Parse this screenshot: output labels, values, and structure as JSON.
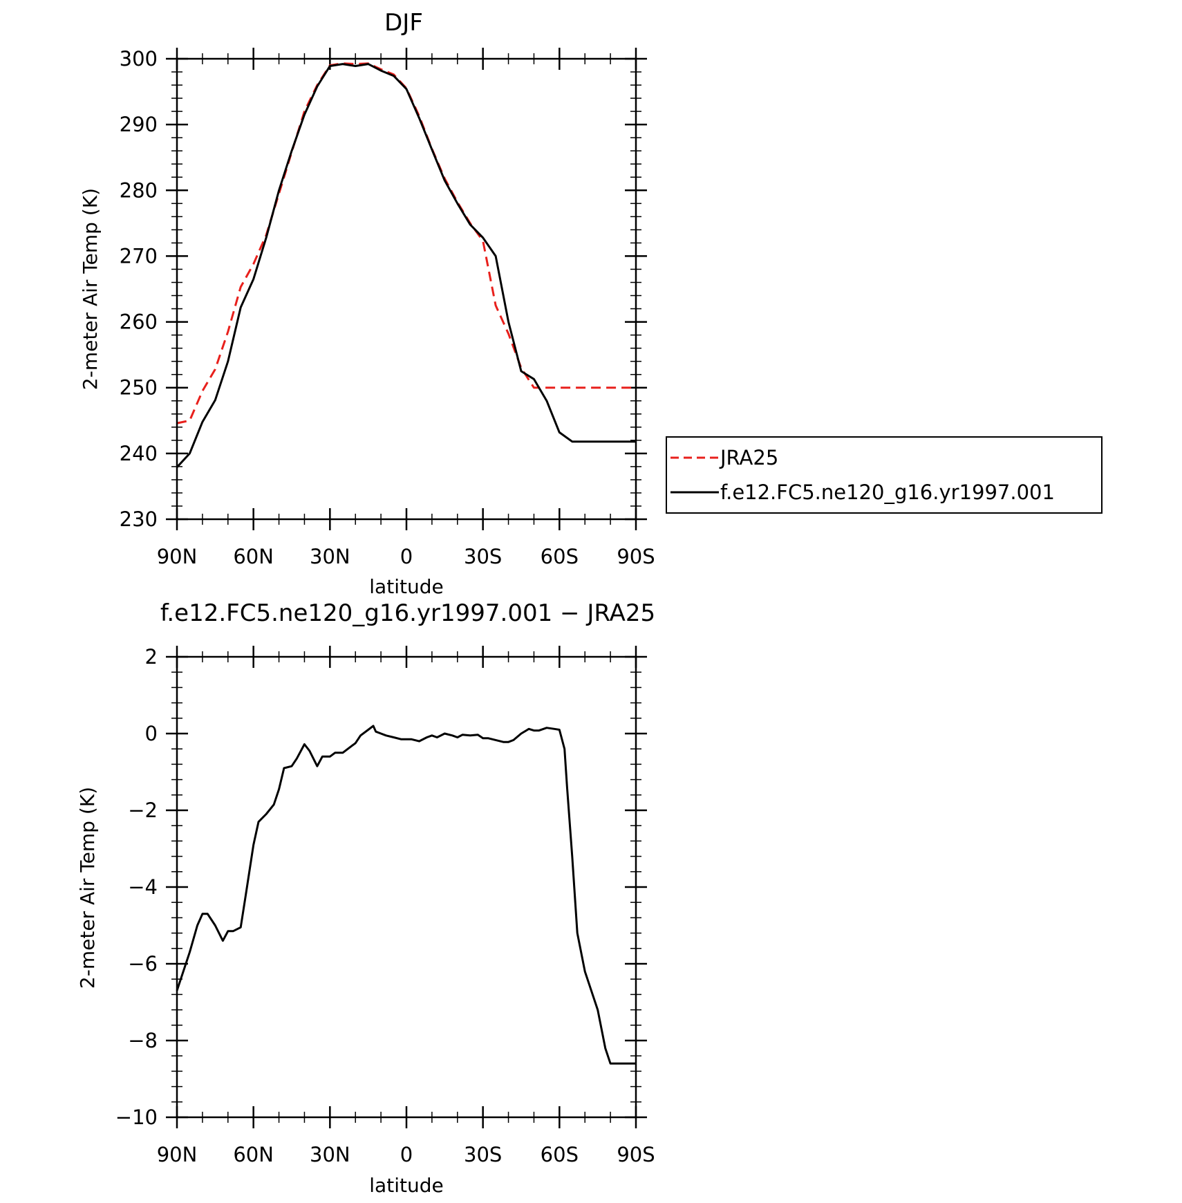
{
  "chart_data": [
    {
      "type": "line",
      "title": "DJF",
      "xlabel": "latitude",
      "ylabel": "2-meter Air Temp (K)",
      "xlim": [
        90,
        -90
      ],
      "ylim": [
        230,
        300
      ],
      "x_ticks": [
        90,
        60,
        30,
        0,
        -30,
        -60,
        -90
      ],
      "x_tick_labels": [
        "90N",
        "60N",
        "30N",
        "0",
        "30S",
        "60S",
        "90S"
      ],
      "y_ticks": [
        230,
        240,
        250,
        260,
        270,
        280,
        290,
        300
      ],
      "y_tick_labels": [
        "230",
        "240",
        "250",
        "260",
        "270",
        "280",
        "290",
        "300"
      ],
      "grid": false,
      "legend_placement": "outside-right",
      "series": [
        {
          "name": "JRA25",
          "color": "#e8201c",
          "style": "dashed",
          "x": [
            90,
            85,
            80,
            75,
            70,
            65,
            60,
            55,
            50,
            45,
            40,
            35,
            30,
            25,
            20,
            15,
            10,
            5,
            0,
            -5,
            -10,
            -15,
            -20,
            -25,
            -30,
            -35,
            -40,
            -45,
            -50,
            -55,
            -60,
            -65,
            -70,
            -75,
            -80,
            -85,
            -90
          ],
          "values": [
            244.6,
            245.0,
            249.5,
            252.8,
            258.5,
            265.3,
            268.8,
            273.2,
            279.5,
            285.8,
            292.0,
            296.0,
            299.0,
            299.3,
            299.2,
            299.3,
            298.4,
            297.6,
            295.5,
            291.3,
            286.3,
            281.8,
            278.2,
            275.0,
            272.3,
            262.5,
            258.2,
            253.0,
            250.0,
            250.0,
            250.0,
            250.0,
            250.0,
            250.0,
            250.0,
            250.0,
            250.0
          ]
        },
        {
          "name": "f.e12.FC5.ne120_g16.yr1997.001",
          "color": "#000000",
          "style": "solid",
          "x": [
            90,
            85,
            80,
            75,
            70,
            65,
            60,
            55,
            50,
            45,
            40,
            35,
            30,
            25,
            20,
            15,
            10,
            5,
            0,
            -5,
            -10,
            -15,
            -20,
            -25,
            -30,
            -35,
            -40,
            -45,
            -50,
            -55,
            -60,
            -65,
            -70,
            -75,
            -80,
            -85,
            -90
          ],
          "values": [
            237.9,
            240.0,
            244.8,
            248.1,
            254.0,
            262.2,
            266.5,
            272.8,
            280.0,
            286.0,
            291.5,
            295.8,
            298.9,
            299.2,
            298.9,
            299.2,
            298.2,
            297.4,
            295.4,
            291.0,
            286.2,
            281.5,
            278.0,
            274.8,
            272.8,
            270.0,
            260.0,
            252.5,
            251.3,
            248.0,
            243.2,
            241.8,
            241.8,
            241.8,
            241.8,
            241.8,
            241.8
          ]
        }
      ]
    },
    {
      "type": "line",
      "title": "f.e12.FC5.ne120_g16.yr1997.001 − JRA25",
      "xlabel": "latitude",
      "ylabel": "2-meter Air Temp (K)",
      "xlim": [
        90,
        -90
      ],
      "ylim": [
        -10,
        2
      ],
      "x_ticks": [
        90,
        60,
        30,
        0,
        -30,
        -60,
        -90
      ],
      "x_tick_labels": [
        "90N",
        "60N",
        "30N",
        "0",
        "30S",
        "60S",
        "90S"
      ],
      "y_ticks": [
        2,
        0,
        -2,
        -4,
        -6,
        -8,
        -10
      ],
      "y_tick_labels": [
        "2",
        "0",
        "−2",
        "−4",
        "−6",
        "−8",
        "−10"
      ],
      "grid": false,
      "series": [
        {
          "color": "#000000",
          "style": "solid",
          "x": [
            90,
            85,
            82,
            80,
            78,
            75,
            72,
            70,
            68,
            65,
            63,
            60,
            58,
            55,
            52,
            50,
            48,
            45,
            43,
            40,
            38,
            35,
            33,
            30,
            28,
            25,
            22,
            20,
            18,
            15,
            13,
            12,
            10,
            8,
            5,
            2,
            0,
            -2,
            -5,
            -8,
            -10,
            -12,
            -15,
            -18,
            -20,
            -22,
            -25,
            -28,
            -30,
            -32,
            -35,
            -38,
            -40,
            -42,
            -45,
            -48,
            -50,
            -52,
            -55,
            -58,
            -60,
            -62,
            -63,
            -65,
            -67,
            -70,
            -72,
            -75,
            -78,
            -80,
            -82,
            -85,
            -87,
            -90
          ],
          "values": [
            -6.7,
            -5.7,
            -5.0,
            -4.7,
            -4.7,
            -5.0,
            -5.4,
            -5.15,
            -5.15,
            -5.05,
            -4.2,
            -2.9,
            -2.3,
            -2.1,
            -1.85,
            -1.45,
            -0.9,
            -0.85,
            -0.65,
            -0.28,
            -0.45,
            -0.85,
            -0.6,
            -0.6,
            -0.5,
            -0.5,
            -0.35,
            -0.25,
            -0.05,
            0.1,
            0.2,
            0.05,
            0.0,
            -0.05,
            -0.1,
            -0.15,
            -0.15,
            -0.15,
            -0.2,
            -0.1,
            -0.05,
            -0.1,
            0.0,
            -0.05,
            -0.1,
            -0.03,
            -0.05,
            -0.03,
            -0.12,
            -0.12,
            -0.17,
            -0.22,
            -0.22,
            -0.17,
            0.0,
            0.12,
            0.08,
            0.08,
            0.15,
            0.12,
            0.1,
            -0.4,
            -1.4,
            -3.2,
            -5.2,
            -6.2,
            -6.6,
            -7.2,
            -8.2,
            -8.6,
            -8.6,
            -8.6,
            -8.6,
            -8.6
          ]
        }
      ]
    }
  ]
}
